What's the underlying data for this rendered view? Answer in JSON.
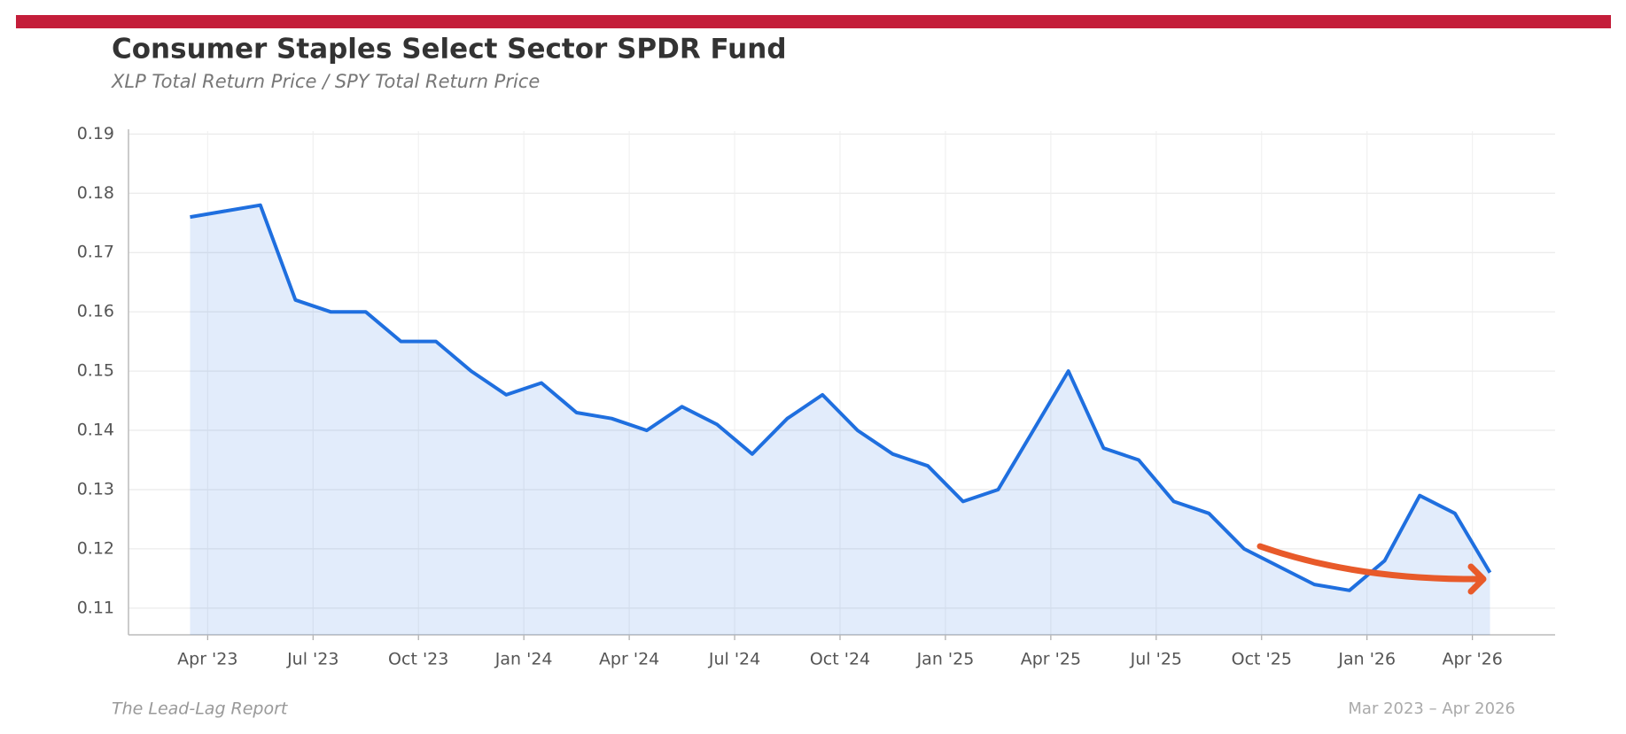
{
  "chart_data": {
    "type": "line",
    "title": "Consumer Staples Select Sector SPDR Fund",
    "subtitle": "XLP Total Return Price / SPY Total Return Price",
    "source": "The Lead-Lag Report",
    "date_range": "Mar 2023 – Apr 2026",
    "x": [
      "2023-03",
      "2023-04",
      "2023-05",
      "2023-06",
      "2023-07",
      "2023-08",
      "2023-09",
      "2023-10",
      "2023-11",
      "2023-12",
      "2024-01",
      "2024-02",
      "2024-03",
      "2024-04",
      "2024-05",
      "2024-06",
      "2024-07",
      "2024-08",
      "2024-09",
      "2024-10",
      "2024-11",
      "2024-12",
      "2025-01",
      "2025-02",
      "2025-03",
      "2025-04",
      "2025-05",
      "2025-06",
      "2025-07",
      "2025-08",
      "2025-09",
      "2025-10",
      "2025-11",
      "2025-12",
      "2026-01",
      "2026-02",
      "2026-03",
      "2026-04"
    ],
    "series": [
      {
        "name": "XLP / SPY",
        "color": "#1f6fdf",
        "values": [
          0.176,
          0.177,
          0.178,
          0.162,
          0.16,
          0.16,
          0.155,
          0.155,
          0.15,
          0.146,
          0.148,
          0.143,
          0.142,
          0.14,
          0.144,
          0.141,
          0.136,
          0.142,
          0.146,
          0.14,
          0.136,
          0.134,
          0.128,
          0.13,
          0.14,
          0.15,
          0.137,
          0.135,
          0.128,
          0.126,
          0.12,
          0.117,
          0.114,
          0.113,
          0.118,
          0.129,
          0.126,
          0.116
        ]
      }
    ],
    "xlim": [
      "2023-02",
      "2026-06"
    ],
    "xticks": [
      {
        "value": "2023-04",
        "label": "Apr '23"
      },
      {
        "value": "2023-07",
        "label": "Jul '23"
      },
      {
        "value": "2023-10",
        "label": "Oct '23"
      },
      {
        "value": "2024-01",
        "label": "Jan '24"
      },
      {
        "value": "2024-04",
        "label": "Apr '24"
      },
      {
        "value": "2024-07",
        "label": "Jul '24"
      },
      {
        "value": "2024-10",
        "label": "Oct '24"
      },
      {
        "value": "2025-01",
        "label": "Jan '25"
      },
      {
        "value": "2025-04",
        "label": "Apr '25"
      },
      {
        "value": "2025-07",
        "label": "Jul '25"
      },
      {
        "value": "2025-10",
        "label": "Oct '25"
      },
      {
        "value": "2026-01",
        "label": "Jan '26"
      },
      {
        "value": "2026-04",
        "label": "Apr '26"
      }
    ],
    "ylim": [
      0.1055,
      0.1905
    ],
    "yticks": [
      0.11,
      0.12,
      0.13,
      0.14,
      0.15,
      0.16,
      0.17,
      0.18,
      0.19
    ],
    "grid": true
  }
}
